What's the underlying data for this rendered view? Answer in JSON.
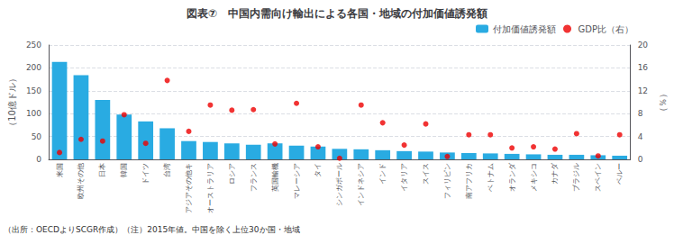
{
  "chart_data": {
    "type": "bar",
    "title": "図表⑦　中国内需向け輸出による各国・地域の付加価値誘発額",
    "ylabel": "（10億ドル）",
    "y2label": "（％）",
    "annotations": [
      "（出所：OECDよりSCGR作成）（注）2015年値。中国を除く上位30か国・地域"
    ],
    "categories": [
      "米国",
      "欧州その他",
      "日本",
      "韓国",
      "ドイツ",
      "台湾",
      "アジアその他キ",
      "オーストラリア",
      "ロシア",
      "フランス",
      "英国輸機",
      "マレーシア",
      "タイ",
      "シンガポール",
      "インドネシア",
      "インド",
      "イタリア",
      "スイス",
      "フィリピン",
      "南アフリカ",
      "ベトナム",
      "オランダ",
      "メキシコ",
      "カナダ",
      "ブラジル",
      "スペイン",
      "ペルー"
    ],
    "series": [
      {
        "name": "付加価値誘発額",
        "type": "bar",
        "color": "#29ABE2",
        "values": [
          213,
          184,
          130,
          98,
          83,
          68,
          40,
          38,
          35,
          32,
          35,
          30,
          28,
          23,
          22,
          20,
          18,
          17,
          15,
          14,
          13,
          12,
          11,
          10,
          10,
          9,
          8
        ]
      },
      {
        "name": "GDP比（右）",
        "type": "scatter",
        "axis": "y2",
        "color": "#EE0000",
        "marker": "circle",
        "values": [
          1.2,
          3.5,
          3.2,
          7.8,
          2.8,
          13.8,
          4.9,
          9.5,
          8.6,
          8.7,
          2.7,
          9.8,
          2.2,
          0.2,
          9.5,
          6.4,
          2.5,
          6.2,
          0.5,
          4.3,
          4.3,
          2.0,
          2.2,
          1.8,
          4.5,
          0.6,
          4.3
        ]
      }
    ],
    "ylim": [
      0,
      250
    ],
    "yticks": [
      0,
      50,
      100,
      150,
      200,
      250
    ],
    "y2lim": [
      0,
      20
    ],
    "y2ticks": [
      0,
      4,
      8,
      12,
      16,
      20
    ],
    "grid": true,
    "legend": "upper right"
  }
}
